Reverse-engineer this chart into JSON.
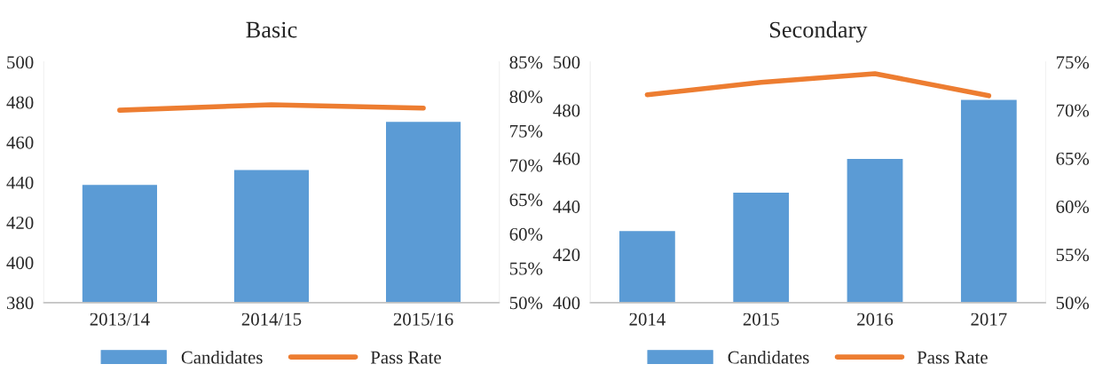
{
  "chart_data": [
    {
      "type": "bar",
      "title": "Basic",
      "categories": [
        "2013/14",
        "2014/15",
        "2015/16"
      ],
      "series": [
        {
          "name": "Candidates",
          "color": "#5b9bd5",
          "values": [
            439,
            446.5,
            470.5
          ]
        },
        {
          "name": "Pass Rate",
          "type": "line",
          "axis": "y2",
          "color": "#ed7d31",
          "values": [
            78.0,
            78.8,
            78.3
          ]
        }
      ],
      "ylim": [
        380,
        500
      ],
      "yticks": [
        380,
        400,
        420,
        440,
        460,
        480,
        500
      ],
      "y2lim": [
        50,
        85
      ],
      "y2ticks": [
        {
          "value": 50,
          "label": "50%"
        },
        {
          "value": 55,
          "label": "55%"
        },
        {
          "value": 60,
          "label": "60%"
        },
        {
          "value": 65,
          "label": "65%"
        },
        {
          "value": 70,
          "label": "70%"
        },
        {
          "value": 75,
          "label": "75%"
        },
        {
          "value": 80,
          "label": "80%"
        },
        {
          "value": 85,
          "label": "85%"
        }
      ],
      "grid": false,
      "legend": "bottom",
      "marker": "none",
      "line_style": "solid"
    },
    {
      "type": "bar",
      "title": "Secondary",
      "categories": [
        "2014",
        "2015",
        "2016",
        "2017"
      ],
      "series": [
        {
          "name": "Candidates",
          "color": "#5b9bd5",
          "values": [
            430,
            446,
            460,
            484.5
          ]
        },
        {
          "name": "Pass Rate",
          "type": "line",
          "axis": "y2",
          "color": "#ed7d31",
          "values": [
            71.6,
            72.9,
            73.8,
            71.5
          ]
        }
      ],
      "ylim": [
        400,
        500
      ],
      "yticks": [
        400,
        420,
        440,
        460,
        480,
        500
      ],
      "y2lim": [
        50,
        75
      ],
      "y2ticks": [
        {
          "value": 50,
          "label": "50%"
        },
        {
          "value": 55,
          "label": "55%"
        },
        {
          "value": 60,
          "label": "60%"
        },
        {
          "value": 65,
          "label": "65%"
        },
        {
          "value": 70,
          "label": "70%"
        },
        {
          "value": 75,
          "label": "75%"
        }
      ],
      "grid": false,
      "legend": "bottom",
      "marker": "none",
      "line_style": "solid"
    }
  ]
}
